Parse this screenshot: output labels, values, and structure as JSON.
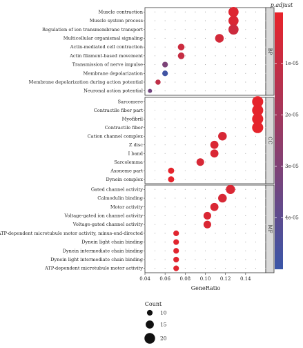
{
  "chart_data": {
    "type": "scatter",
    "xlabel": "GeneRatio",
    "x_ticks": [
      "0.04",
      "0.06",
      "0.08",
      "0.10",
      "0.12",
      "0.14"
    ],
    "xlim": [
      0.04,
      0.16
    ],
    "panels": [
      {
        "name": "BP",
        "terms": [
          {
            "label": "Muscle contraction",
            "x": 0.128,
            "count": 19,
            "p_adjust": 3e-06
          },
          {
            "label": "Muscle system process",
            "x": 0.128,
            "count": 19,
            "p_adjust": 4e-06
          },
          {
            "label": "Regulation of ion transmembrane transport",
            "x": 0.128,
            "count": 19,
            "p_adjust": 8e-06
          },
          {
            "label": "Multicellular organismal signaling",
            "x": 0.114,
            "count": 16,
            "p_adjust": 6e-06
          },
          {
            "label": "Actin-mediated cell contraction",
            "x": 0.076,
            "count": 12,
            "p_adjust": 8e-06
          },
          {
            "label": "Actin filament-based movement",
            "x": 0.076,
            "count": 12,
            "p_adjust": 1e-05
          },
          {
            "label": "Transmission of nerve impulse",
            "x": 0.06,
            "count": 10,
            "p_adjust": 3.1e-05
          },
          {
            "label": "Membrane depolarization",
            "x": 0.06,
            "count": 10,
            "p_adjust": 4.8e-05
          },
          {
            "label": "Membrane depolarization during action potential",
            "x": 0.053,
            "count": 9,
            "p_adjust": 1.2e-05
          },
          {
            "label": "Neuronal action potential",
            "x": 0.045,
            "count": 7,
            "p_adjust": 3.4e-05
          }
        ]
      },
      {
        "name": "CC",
        "terms": [
          {
            "label": "Sarcomere",
            "x": 0.152,
            "count": 21,
            "p_adjust": 1e-06
          },
          {
            "label": "Contractile fiber part",
            "x": 0.152,
            "count": 21,
            "p_adjust": 1e-06
          },
          {
            "label": "Myofibril",
            "x": 0.152,
            "count": 21,
            "p_adjust": 1e-06
          },
          {
            "label": "Contractile fiber",
            "x": 0.152,
            "count": 21,
            "p_adjust": 1e-06
          },
          {
            "label": "Cation channel complex",
            "x": 0.117,
            "count": 16,
            "p_adjust": 5e-06
          },
          {
            "label": "Z disc",
            "x": 0.109,
            "count": 15,
            "p_adjust": 4e-06
          },
          {
            "label": "I band",
            "x": 0.109,
            "count": 15,
            "p_adjust": 4e-06
          },
          {
            "label": "Sarcolemma",
            "x": 0.095,
            "count": 14,
            "p_adjust": 5e-06
          },
          {
            "label": "Axoneme part",
            "x": 0.066,
            "count": 11,
            "p_adjust": 1e-06
          },
          {
            "label": "Dynein complex",
            "x": 0.066,
            "count": 11,
            "p_adjust": 1e-06
          }
        ]
      },
      {
        "name": "MF",
        "terms": [
          {
            "label": "Gated channel activity",
            "x": 0.125,
            "count": 17,
            "p_adjust": 4e-06
          },
          {
            "label": "Calmodulin binding",
            "x": 0.117,
            "count": 16,
            "p_adjust": 5e-06
          },
          {
            "label": "Motor activity",
            "x": 0.109,
            "count": 15,
            "p_adjust": 4e-06
          },
          {
            "label": "Voltage-gated ion channel activity",
            "x": 0.102,
            "count": 14,
            "p_adjust": 4e-06
          },
          {
            "label": "Voltage-gated channel activity",
            "x": 0.102,
            "count": 14,
            "p_adjust": 4e-06
          },
          {
            "label": "ATP-dependent microtubule motor activity, minus-end-directed",
            "x": 0.071,
            "count": 10,
            "p_adjust": 2e-06
          },
          {
            "label": "Dynein light chain binding",
            "x": 0.071,
            "count": 10,
            "p_adjust": 2e-06
          },
          {
            "label": "Dynein intermediate chain binding",
            "x": 0.071,
            "count": 10,
            "p_adjust": 2e-06
          },
          {
            "label": "Dynein light intermediate chain binding",
            "x": 0.071,
            "count": 10,
            "p_adjust": 2e-06
          },
          {
            "label": "ATP-dependent microtubule motor activity",
            "x": 0.071,
            "count": 10,
            "p_adjust": 2e-06
          }
        ]
      }
    ],
    "color_legend": {
      "title": "p.adjust",
      "ticks": [
        "1e-05",
        "2e-05",
        "3e-05",
        "4e-05"
      ],
      "tick_values": [
        1e-05,
        2e-05,
        3e-05,
        4e-05
      ],
      "range": [
        1e-07,
        5e-05
      ],
      "low_color": "#e8232a",
      "high_color": "#3a56a8"
    },
    "size_legend": {
      "title": "Count",
      "labels": [
        "10",
        "15",
        "20"
      ],
      "values": [
        10,
        15,
        20
      ]
    },
    "grid": true,
    "colors": {
      "panel_bg": "#ffffff",
      "strip_bg": "#d9d9d9",
      "grid": "#c8c8c8",
      "point_outline": "#ffffff"
    }
  }
}
